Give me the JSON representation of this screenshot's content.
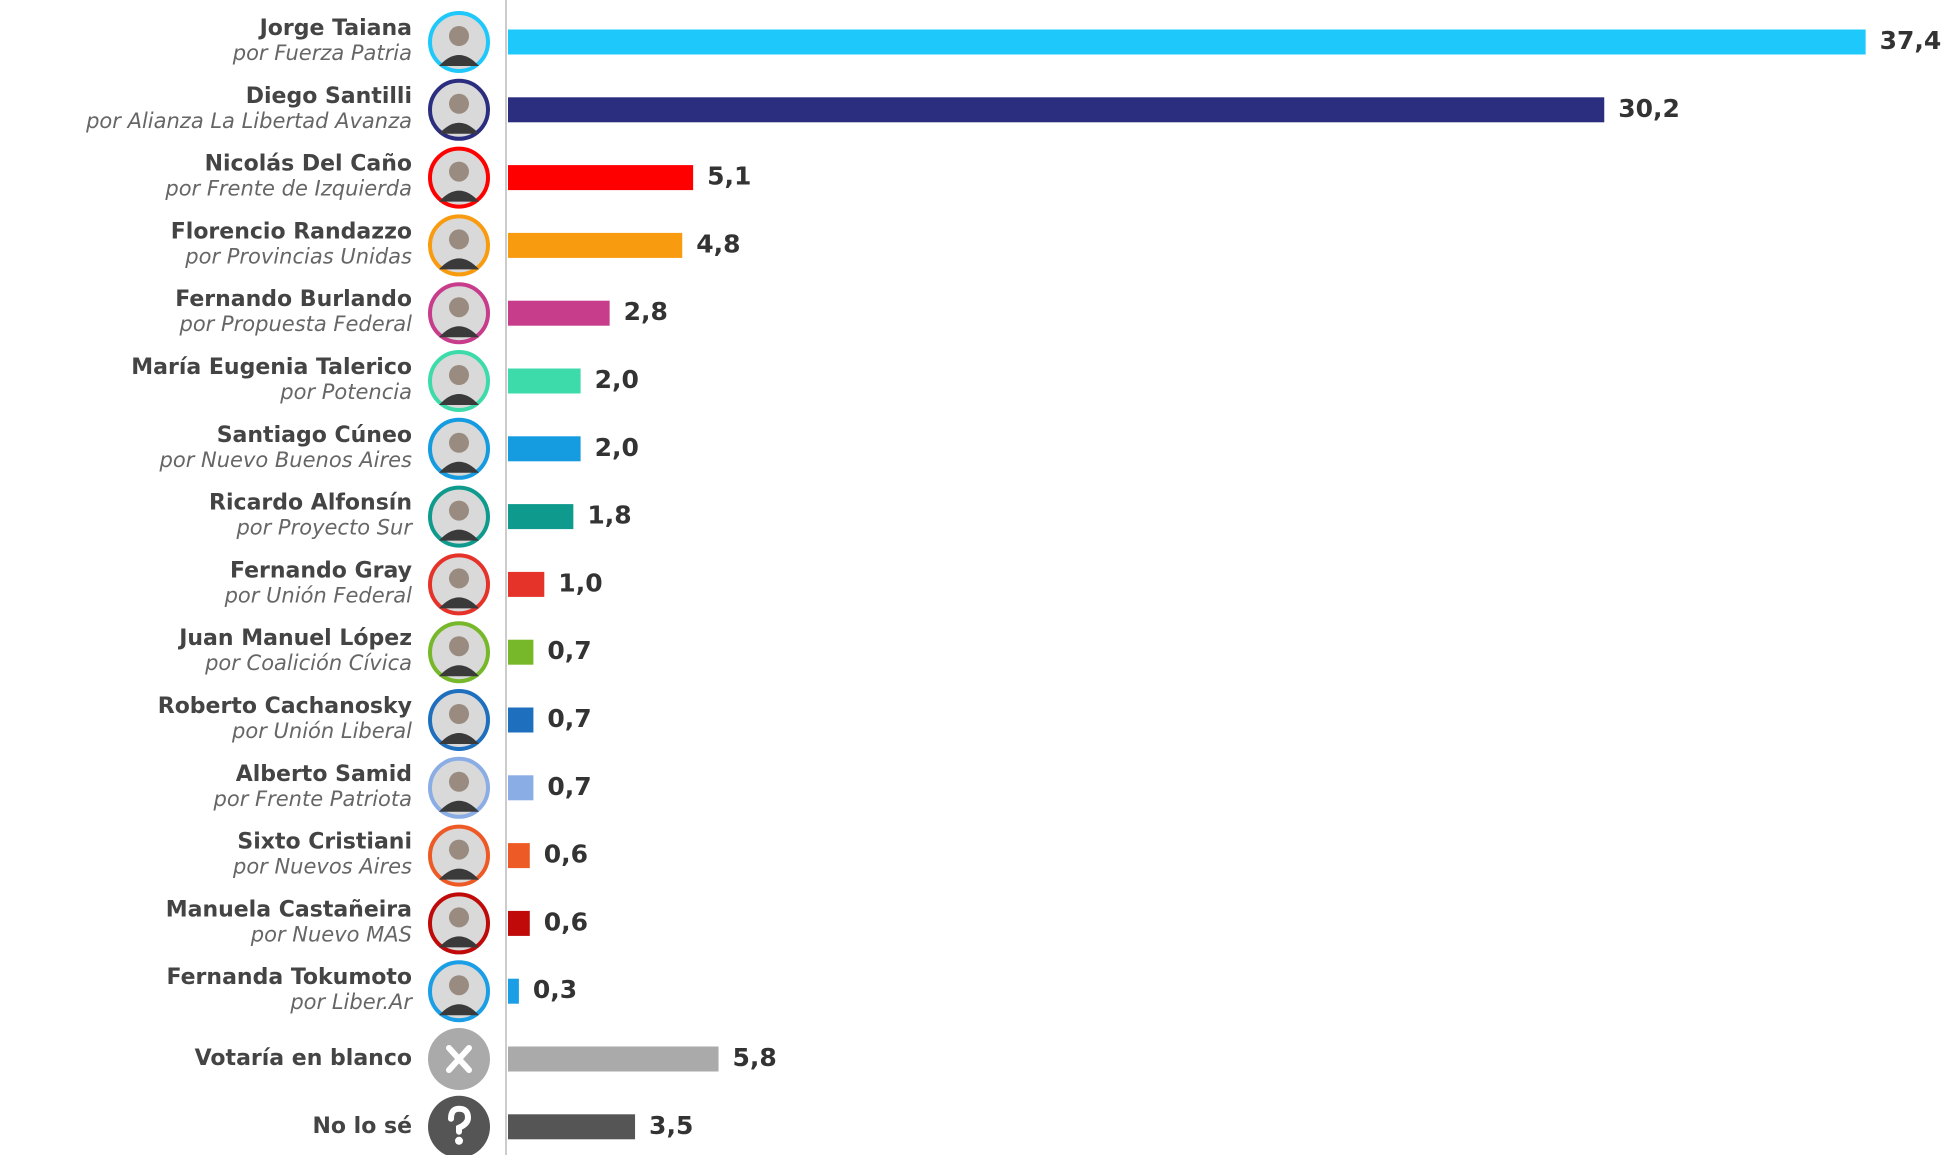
{
  "chart_data": {
    "type": "bar",
    "categories": [
      "Jorge Taiana",
      "Diego Santilli",
      "Nicolás Del Caño",
      "Florencio Randazzo",
      "Fernando Burlando",
      "María Eugenia Talerico",
      "Santiago Cúneo",
      "Ricardo Alfonsín",
      "Fernando Gray",
      "Juan Manuel López",
      "Roberto Cachanosky",
      "Alberto Samid",
      "Sixto Cristiani",
      "Manuela Castañeira",
      "Fernanda Tokumoto",
      "Votaría en blanco",
      "No lo sé"
    ],
    "parties": [
      "por Fuerza Patria",
      "por Alianza La Libertad Avanza",
      "por Frente de Izquierda",
      "por Provincias Unidas",
      "por Propuesta Federal",
      "por Potencia",
      "por Nuevo Buenos Aires",
      "por Proyecto Sur",
      "por Unión Federal",
      "por Coalición Cívica",
      "por Unión Liberal",
      "por Frente Patriota",
      "por Nuevos Aires",
      "por Nuevo MAS",
      "por Liber.Ar",
      null,
      null
    ],
    "values": [
      37.4,
      30.2,
      5.1,
      4.8,
      2.8,
      2.0,
      2.0,
      1.8,
      1.0,
      0.7,
      0.7,
      0.7,
      0.6,
      0.6,
      0.3,
      5.8,
      3.5
    ],
    "value_labels": [
      "37,4",
      "30,2",
      "5,1",
      "4,8",
      "2,8",
      "2,0",
      "2,0",
      "1,8",
      "1,0",
      "0,7",
      "0,7",
      "0,7",
      "0,6",
      "0,6",
      "0,3",
      "5,8",
      "3,5"
    ],
    "colors": [
      "#1ec8fa",
      "#2b2d7f",
      "#ff0000",
      "#f99b0f",
      "#c83c8c",
      "#3ddbaa",
      "#159be0",
      "#0e9a8c",
      "#e5332a",
      "#76b82a",
      "#1e6fbd",
      "#8aade6",
      "#ee5a26",
      "#c00a0a",
      "#1a9ee5",
      "#aaaaaa",
      "#555555"
    ]
  }
}
